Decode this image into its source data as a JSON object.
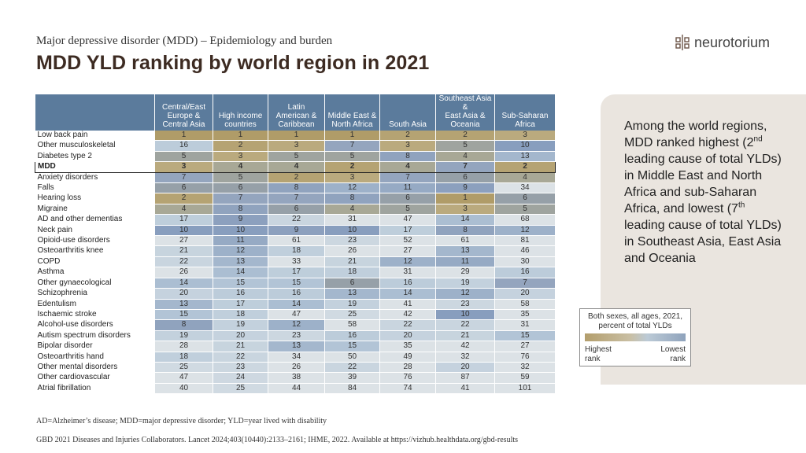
{
  "header": {
    "subtitle": "Major depressive disorder (MDD) – Epidemiology and burden",
    "title": "MDD YLD ranking by world region in 2021"
  },
  "logo": {
    "text": "neurotorium",
    "icon": "neurotorium-logo-icon"
  },
  "table": {
    "columns": [
      "Central/East Europe & Central Asia",
      "High income countries",
      "Latin American & Caribbean",
      "Middle East & North Africa",
      "South Asia",
      "Southeast Asia & East Asia & Oceania",
      "Sub-Saharan Africa"
    ],
    "column_lines": [
      [
        "Central/East",
        "Europe &",
        "Central Asia"
      ],
      [
        "High income",
        "countries"
      ],
      [
        "Latin",
        "American &",
        "Caribbean"
      ],
      [
        "Middle East &",
        "North Africa"
      ],
      [
        "South Asia"
      ],
      [
        "Southeast Asia &",
        "East Asia &",
        "Oceania"
      ],
      [
        "Sub-Saharan",
        "Africa"
      ]
    ],
    "highlight_row": "MDD",
    "rows": [
      {
        "label": "Low back pain",
        "values": [
          1,
          1,
          1,
          1,
          2,
          2,
          3
        ]
      },
      {
        "label": "Other musculoskeletal",
        "values": [
          16,
          2,
          3,
          7,
          3,
          5,
          10
        ]
      },
      {
        "label": "Diabetes type 2",
        "values": [
          5,
          3,
          5,
          5,
          8,
          4,
          13
        ]
      },
      {
        "label": "MDD",
        "values": [
          3,
          4,
          4,
          2,
          4,
          7,
          2
        ]
      },
      {
        "label": "Anxiety disorders",
        "values": [
          7,
          5,
          2,
          3,
          7,
          6,
          4
        ]
      },
      {
        "label": "Falls",
        "values": [
          6,
          6,
          8,
          12,
          11,
          9,
          34
        ]
      },
      {
        "label": "Hearing loss",
        "values": [
          2,
          7,
          7,
          8,
          6,
          1,
          6
        ]
      },
      {
        "label": "Migraine",
        "values": [
          4,
          8,
          6,
          4,
          5,
          3,
          5
        ]
      },
      {
        "label": "AD and other dementias",
        "values": [
          17,
          9,
          22,
          31,
          47,
          14,
          68
        ]
      },
      {
        "label": "Neck pain",
        "values": [
          10,
          10,
          9,
          10,
          17,
          8,
          12
        ]
      },
      {
        "label": "Opioid-use disorders",
        "values": [
          27,
          11,
          61,
          23,
          52,
          61,
          81
        ]
      },
      {
        "label": "Osteoarthritis knee",
        "values": [
          21,
          12,
          18,
          26,
          27,
          13,
          46
        ]
      },
      {
        "label": "COPD",
        "values": [
          22,
          13,
          33,
          21,
          12,
          11,
          30
        ]
      },
      {
        "label": "Asthma",
        "values": [
          26,
          14,
          17,
          18,
          31,
          29,
          16
        ]
      },
      {
        "label": "Other gynaecological",
        "values": [
          14,
          15,
          15,
          6,
          16,
          19,
          7
        ]
      },
      {
        "label": "Schizophrenia",
        "values": [
          20,
          16,
          16,
          13,
          14,
          12,
          20
        ]
      },
      {
        "label": "Edentulism",
        "values": [
          13,
          17,
          14,
          19,
          41,
          23,
          58
        ]
      },
      {
        "label": "Ischaemic stroke",
        "values": [
          15,
          18,
          47,
          25,
          42,
          10,
          35
        ]
      },
      {
        "label": "Alcohol-use disorders",
        "values": [
          8,
          19,
          12,
          58,
          22,
          22,
          31
        ]
      },
      {
        "label": "Autism spectrum disorders",
        "values": [
          19,
          20,
          23,
          16,
          20,
          21,
          15
        ]
      },
      {
        "label": "Bipolar disorder",
        "values": [
          28,
          21,
          13,
          15,
          35,
          42,
          27
        ]
      },
      {
        "label": "Osteoarthritis hand",
        "values": [
          18,
          22,
          34,
          50,
          49,
          32,
          76
        ]
      },
      {
        "label": "Other mental disorders",
        "values": [
          25,
          23,
          26,
          22,
          28,
          20,
          32
        ]
      },
      {
        "label": "Other cardiovascular",
        "values": [
          47,
          24,
          38,
          39,
          76,
          87,
          59
        ]
      },
      {
        "label": "Atrial fibrillation",
        "values": [
          40,
          25,
          44,
          84,
          74,
          41,
          101
        ]
      }
    ]
  },
  "colors": {
    "header_bg": "#5b7b9c",
    "side_panel_bg": "#eae5df",
    "title_color": "#3d2b22",
    "high_rank": "#b39e6c",
    "low_rank": "#8fa3bc"
  },
  "side_panel": {
    "text_parts": [
      "Among the world regions, MDD ranked highest (2",
      "nd",
      " leading cause of total YLDs) in Middle East and North Africa and sub-Saharan Africa, and lowest (7",
      "th",
      " leading cause of total YLDs) in Southeast Asia, East Asia and Oceania"
    ]
  },
  "legend": {
    "title_line1": "Both sexes, all ages, 2021,",
    "title_line2": "percent of total YLDs",
    "high_line1": "Highest",
    "high_line2": "rank",
    "low_line1": "Lowest",
    "low_line2": "rank"
  },
  "footer": {
    "abbreviations": "AD=Alzheimer’s disease; MDD=major depressive disorder; YLD=year lived with disability",
    "source": "GBD 2021 Diseases and Injuries Collaborators. Lancet 2024;403(10440):2133–2161; IHME, 2022. Available at https://vizhub.healthdata.org/gbd-results"
  }
}
